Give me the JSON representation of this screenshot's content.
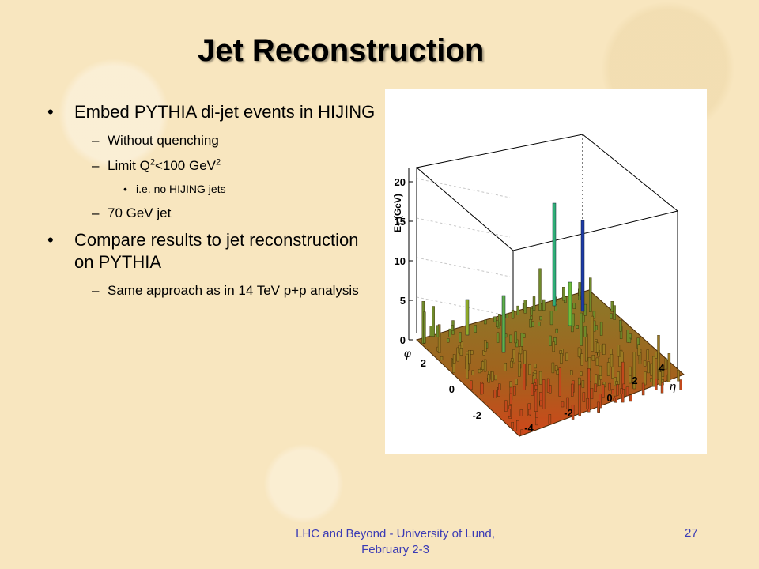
{
  "title": "Jet Reconstruction",
  "bullets": {
    "b1": "Embed PYTHIA di-jet events in HIJING",
    "b1_sub1": "Without quenching",
    "b1_sub2_pre": "Limit Q",
    "b1_sub2_sup1": "2",
    "b1_sub2_mid": "<100 GeV",
    "b1_sub2_sup2": "2",
    "b1_sub2_sub": "i.e. no HIJING jets",
    "b1_sub3": "70 GeV jet",
    "b2": "Compare results to jet reconstruction on PYTHIA",
    "b2_sub1": "Same approach as in 14 TeV p+p analysis"
  },
  "plot": {
    "z_axis_label": "E",
    "z_axis_label_sub": "T",
    "z_axis_label_unit": " (GeV)",
    "z_ticks": [
      "0",
      "5",
      "10",
      "15",
      "20"
    ],
    "y_axis_label": "φ",
    "y_ticks": [
      "2",
      "0",
      "-2"
    ],
    "x_axis_label": "η",
    "x_ticks": [
      "-4",
      "-2",
      "0",
      "2",
      "4"
    ]
  },
  "footer": {
    "line1": "LHC and Beyond - University of Lund,",
    "line2": "February 2-3",
    "page": "27"
  }
}
